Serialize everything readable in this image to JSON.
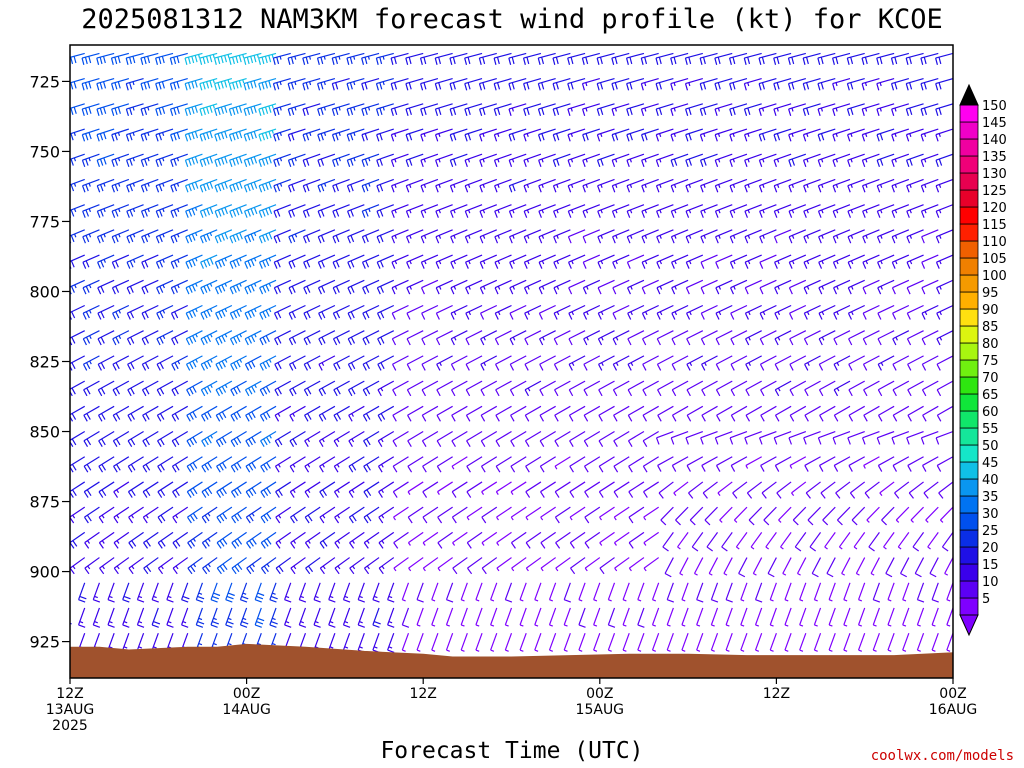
{
  "title": "2025081312 NAM3KM forecast wind profile (kt) for KCOE",
  "credit": "coolwx.com/models",
  "terrain_color": "#a0522d",
  "chart_data": {
    "type": "wind-barb time-height section",
    "xlabel": "Forecast Time (UTC)",
    "ylabel": "",
    "y_unit": "hPa",
    "ylim": [
      938,
      712
    ],
    "y_ticks": [
      725,
      750,
      775,
      800,
      825,
      850,
      875,
      900,
      925
    ],
    "x_range_hours": [
      0,
      60
    ],
    "x_ticks": [
      {
        "hour": 0,
        "lines": [
          "12Z",
          "13AUG",
          "2025"
        ]
      },
      {
        "hour": 12,
        "lines": [
          "00Z",
          "14AUG"
        ]
      },
      {
        "hour": 24,
        "lines": [
          "12Z"
        ]
      },
      {
        "hour": 36,
        "lines": [
          "00Z",
          "15AUG"
        ]
      },
      {
        "hour": 48,
        "lines": [
          "12Z"
        ]
      },
      {
        "hour": 60,
        "lines": [
          "00Z",
          "16AUG"
        ]
      }
    ],
    "surface_pressure": [
      {
        "hour": 0,
        "p": 927
      },
      {
        "hour": 2,
        "p": 927
      },
      {
        "hour": 4,
        "p": 928
      },
      {
        "hour": 8,
        "p": 927
      },
      {
        "hour": 10,
        "p": 927
      },
      {
        "hour": 12,
        "p": 926
      },
      {
        "hour": 16,
        "p": 927
      },
      {
        "hour": 20,
        "p": 928.5
      },
      {
        "hour": 24,
        "p": 929.5
      },
      {
        "hour": 26,
        "p": 930.5
      },
      {
        "hour": 30,
        "p": 930.5
      },
      {
        "hour": 34,
        "p": 930
      },
      {
        "hour": 38,
        "p": 929.5
      },
      {
        "hour": 42,
        "p": 929.5
      },
      {
        "hour": 46,
        "p": 930
      },
      {
        "hour": 50,
        "p": 930
      },
      {
        "hour": 56,
        "p": 930
      },
      {
        "hour": 60,
        "p": 929
      }
    ],
    "colorbar": {
      "unit": "kt",
      "levels": [
        5,
        10,
        15,
        20,
        25,
        30,
        35,
        40,
        45,
        50,
        55,
        60,
        65,
        70,
        75,
        80,
        85,
        90,
        95,
        100,
        105,
        110,
        115,
        120,
        125,
        130,
        135,
        140,
        145,
        150
      ],
      "colors": [
        "#7f00ff",
        "#5c00f5",
        "#3a00eb",
        "#1f10e6",
        "#0a2ee6",
        "#0050ee",
        "#0073f2",
        "#0a96f0",
        "#10c0e6",
        "#15e6c8",
        "#15e69a",
        "#10e66a",
        "#10e63a",
        "#2ee610",
        "#70f010",
        "#a8f510",
        "#dcf510",
        "#ffe010",
        "#ffb000",
        "#f59a00",
        "#f08000",
        "#f06000",
        "#ff2000",
        "#ff0000",
        "#e8002a",
        "#e80050",
        "#f00078",
        "#f000a0",
        "#f000c8",
        "#ff00f0"
      ]
    },
    "wind_speed_kt_by_hour": [
      {
        "hours": [
          0,
          8
        ],
        "speed_range": [
          15,
          30
        ]
      },
      {
        "hours": [
          9,
          14
        ],
        "speed_range": [
          25,
          45
        ]
      },
      {
        "hours": [
          15,
          22
        ],
        "speed_range": [
          15,
          25
        ]
      },
      {
        "hours": [
          23,
          60
        ],
        "speed_range": [
          5,
          20
        ]
      }
    ],
    "wind_direction": "westerly to west-southwesterly aloft, backing southerly near the surface"
  }
}
